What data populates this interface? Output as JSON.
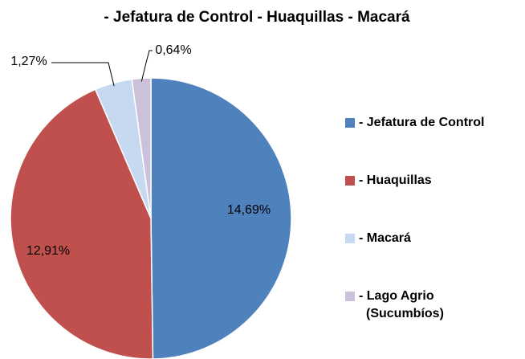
{
  "chart_data": {
    "type": "pie",
    "title": "- Jefatura de Control - Huaquillas - Macará",
    "categories": [
      "- Jefatura de Control",
      "- Huaquillas",
      "- Macará",
      "- Lago Agrio (Sucumbíos)"
    ],
    "values": [
      14.69,
      12.91,
      1.27,
      0.64
    ],
    "value_labels": [
      "14,69%",
      "12,91%",
      "1,27%",
      "0,64%"
    ],
    "colors": [
      "#4f81bd",
      "#c0504d",
      "#c6d9f1",
      "#ccc1da"
    ],
    "legend": "right"
  }
}
